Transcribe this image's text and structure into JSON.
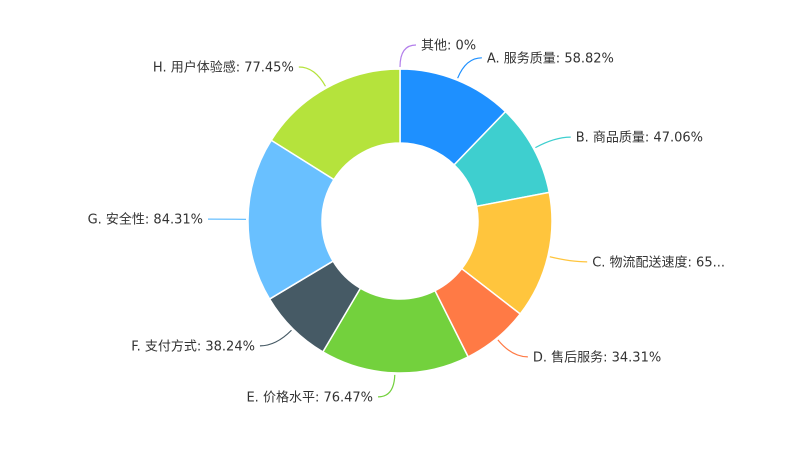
{
  "chart_data": {
    "type": "pie",
    "variant": "donut",
    "legend": "none",
    "slices": [
      {
        "label": "A. 服务质量: 58.82%",
        "name": "A. 服务质量",
        "value": 58.82,
        "color": "#1E90FF"
      },
      {
        "label": "B. 商品质量: 47.06%",
        "name": "B. 商品质量",
        "value": 47.06,
        "color": "#3ECFCF"
      },
      {
        "label": "C. 物流配送速度: 65...",
        "name": "C. 物流配送速度",
        "value": 65,
        "color": "#FFC53D"
      },
      {
        "label": "D. 售后服务: 34.31%",
        "name": "D. 售后服务",
        "value": 34.31,
        "color": "#FF7A45"
      },
      {
        "label": "E. 价格水平: 76.47%",
        "name": "E. 价格水平",
        "value": 76.47,
        "color": "#73D13D"
      },
      {
        "label": "F. 支付方式: 38.24%",
        "name": "F. 支付方式",
        "value": 38.24,
        "color": "#465A65"
      },
      {
        "label": "G. 安全性: 84.31%",
        "name": "G. 安全性",
        "value": 84.31,
        "color": "#69C0FF"
      },
      {
        "label": "H. 用户体验感: 77.45%",
        "name": "H. 用户体验感",
        "value": 77.45,
        "color": "#B5E33C"
      },
      {
        "label": "其他: 0%",
        "name": "其他",
        "value": 0,
        "color": "#B37FEB"
      }
    ]
  }
}
